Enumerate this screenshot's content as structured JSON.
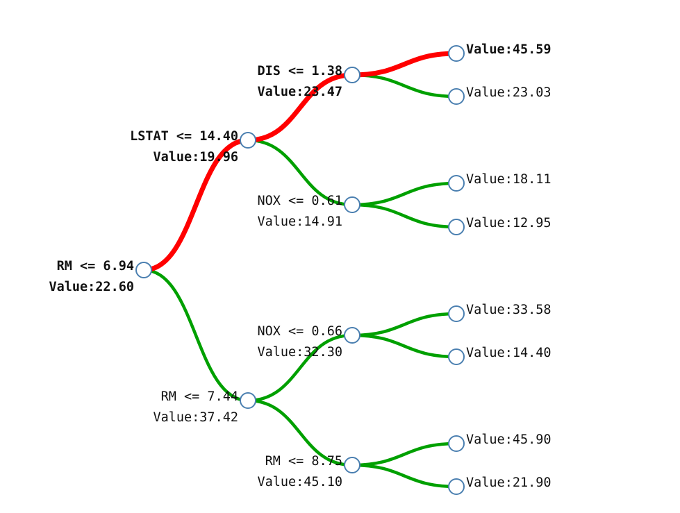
{
  "colors": {
    "highlight_path": "#ff0000",
    "normal_path": "#00a000",
    "node_stroke": "#4a7fb0",
    "node_fill": "#ffffff",
    "text": "#111111"
  },
  "tree": {
    "nodes": [
      {
        "id": "n0",
        "split": "RM <= 6.94",
        "value": "Value:22.60",
        "highlighted": true
      },
      {
        "id": "n1",
        "split": "LSTAT <= 14.40",
        "value": "Value:19.96",
        "highlighted": true
      },
      {
        "id": "n2",
        "split": "RM <= 7.44",
        "value": "Value:37.42",
        "highlighted": false
      },
      {
        "id": "n3",
        "split": "DIS <= 1.38",
        "value": "Value:23.47",
        "highlighted": true
      },
      {
        "id": "n4",
        "split": "NOX <= 0.61",
        "value": "Value:14.91",
        "highlighted": false
      },
      {
        "id": "n5",
        "split": "NOX <= 0.66",
        "value": "Value:32.30",
        "highlighted": false
      },
      {
        "id": "n6",
        "split": "RM <= 8.75",
        "value": "Value:45.10",
        "highlighted": false
      },
      {
        "id": "n7",
        "split": "",
        "value": "Value:45.59",
        "highlighted": true
      },
      {
        "id": "n8",
        "split": "",
        "value": "Value:23.03",
        "highlighted": false
      },
      {
        "id": "n9",
        "split": "",
        "value": "Value:18.11",
        "highlighted": false
      },
      {
        "id": "n10",
        "split": "",
        "value": "Value:12.95",
        "highlighted": false
      },
      {
        "id": "n11",
        "split": "",
        "value": "Value:33.58",
        "highlighted": false
      },
      {
        "id": "n12",
        "split": "",
        "value": "Value:14.40",
        "highlighted": false
      },
      {
        "id": "n13",
        "split": "",
        "value": "Value:45.90",
        "highlighted": false
      },
      {
        "id": "n14",
        "split": "",
        "value": "Value:21.90",
        "highlighted": false
      }
    ],
    "edges": [
      {
        "from": "n0",
        "to": "n1",
        "highlighted": true
      },
      {
        "from": "n0",
        "to": "n2",
        "highlighted": false
      },
      {
        "from": "n1",
        "to": "n3",
        "highlighted": true
      },
      {
        "from": "n1",
        "to": "n4",
        "highlighted": false
      },
      {
        "from": "n2",
        "to": "n5",
        "highlighted": false
      },
      {
        "from": "n2",
        "to": "n6",
        "highlighted": false
      },
      {
        "from": "n3",
        "to": "n7",
        "highlighted": true
      },
      {
        "from": "n3",
        "to": "n8",
        "highlighted": false
      },
      {
        "from": "n4",
        "to": "n9",
        "highlighted": false
      },
      {
        "from": "n4",
        "to": "n10",
        "highlighted": false
      },
      {
        "from": "n5",
        "to": "n11",
        "highlighted": false
      },
      {
        "from": "n5",
        "to": "n12",
        "highlighted": false
      },
      {
        "from": "n6",
        "to": "n13",
        "highlighted": false
      },
      {
        "from": "n6",
        "to": "n14",
        "highlighted": false
      }
    ]
  }
}
